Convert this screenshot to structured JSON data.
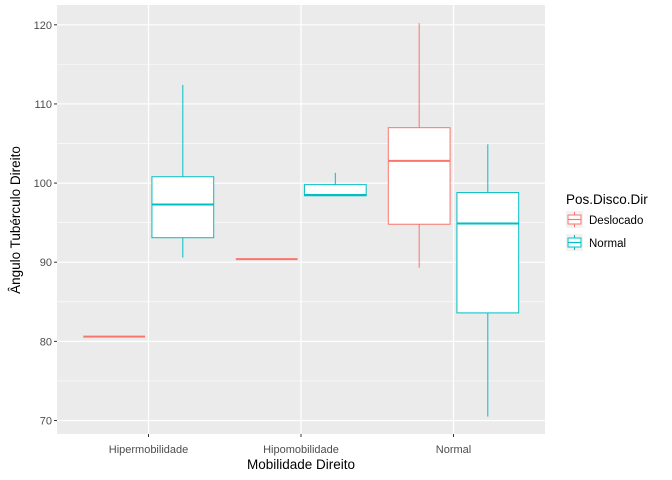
{
  "chart_data": {
    "type": "boxplot",
    "xlabel": "Mobilidade Direito",
    "ylabel": "Ângulo Tubérculo Direito",
    "categories": [
      "Hipermobilidade",
      "Hipomobilidade",
      "Normal"
    ],
    "ylim": [
      68.3,
      122.5
    ],
    "yticks": [
      70,
      80,
      90,
      100,
      110,
      120
    ],
    "grid": true,
    "legend": {
      "title": "Pos.Disco.Dir",
      "position": "right",
      "entries": [
        "Deslocado",
        "Normal"
      ]
    },
    "series": [
      {
        "name": "Deslocado",
        "color": "#F8766D",
        "boxes": [
          {
            "category": "Hipermobilidade",
            "min": 80.6,
            "q1": 80.6,
            "median": 80.6,
            "q3": 80.6,
            "max": 80.6
          },
          {
            "category": "Hipomobilidade",
            "min": 90.4,
            "q1": 90.4,
            "median": 90.4,
            "q3": 90.4,
            "max": 90.4
          },
          {
            "category": "Normal",
            "min": 89.3,
            "q1": 94.8,
            "median": 102.8,
            "q3": 107.0,
            "max": 120.2
          }
        ]
      },
      {
        "name": "Normal",
        "color": "#00BFC4",
        "boxes": [
          {
            "category": "Hipermobilidade",
            "min": 90.6,
            "q1": 93.1,
            "median": 97.3,
            "q3": 100.8,
            "max": 112.4
          },
          {
            "category": "Hipomobilidade",
            "min": 98.4,
            "q1": 98.4,
            "median": 98.5,
            "q3": 99.8,
            "max": 101.3
          },
          {
            "category": "Normal",
            "min": 70.5,
            "q1": 83.6,
            "median": 94.9,
            "q3": 98.8,
            "max": 104.9
          }
        ]
      }
    ]
  }
}
